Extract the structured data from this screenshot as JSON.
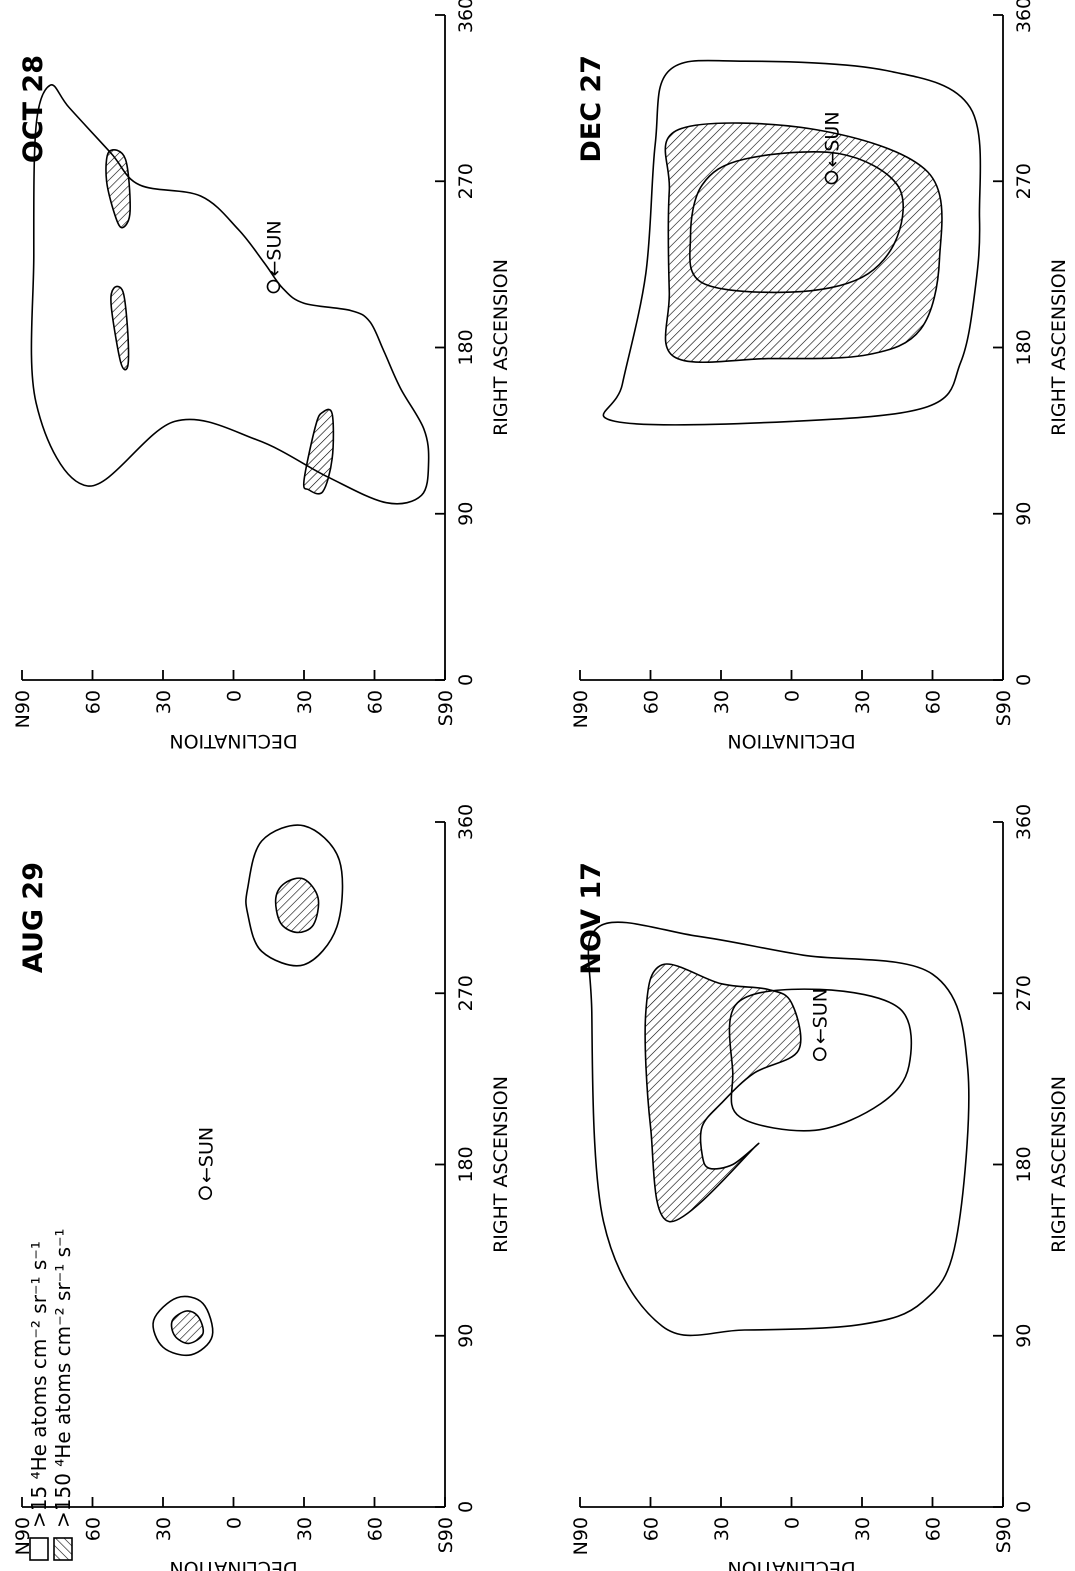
{
  "legend": {
    "low": {
      "symbol": "open box",
      "text": ">15 ⁴He atoms cm⁻² sr⁻¹ s⁻¹"
    },
    "high": {
      "symbol": "hatched box",
      "text": ">150 ⁴He atoms cm⁻² sr⁻¹ s⁻¹"
    }
  },
  "chart_data": [
    {
      "type": "contour",
      "title": "AUG 29",
      "xlabel": "RIGHT ASCENSION",
      "ylabel": "DECLINATION",
      "xticks": [
        "0",
        "90",
        "180",
        "270",
        "360"
      ],
      "yticks": [
        "N90",
        "60",
        "30",
        "0",
        "30",
        "60",
        "S90"
      ],
      "xlim": [
        0,
        360
      ],
      "ylim": [
        -90,
        90
      ],
      "sun": {
        "label": "SUN",
        "ra": 165,
        "dec": 12
      },
      "regions": [
        {
          "level": ">15",
          "contour": [
            [
              98,
              34
            ],
            [
              110,
              24
            ],
            [
              107,
              13
            ],
            [
              90,
              9
            ],
            [
              80,
              18
            ],
            [
              84,
              30
            ]
          ]
        },
        {
          "level": ">150",
          "contour": [
            [
              98,
              26
            ],
            [
              103,
              20
            ],
            [
              100,
              15
            ],
            [
              91,
              13
            ],
            [
              86,
              19
            ],
            [
              90,
              25
            ]
          ]
        },
        {
          "level": ">15",
          "contour": [
            [
              325,
              -6
            ],
            [
              350,
              -12
            ],
            [
              358,
              -30
            ],
            [
              340,
              -45
            ],
            [
              305,
              -44
            ],
            [
              285,
              -30
            ],
            [
              292,
              -12
            ],
            [
              312,
              -6
            ]
          ]
        },
        {
          "level": ">150",
          "contour": [
            [
              320,
              -18
            ],
            [
              328,
              -22
            ],
            [
              330,
              -30
            ],
            [
              320,
              -36
            ],
            [
              306,
              -34
            ],
            [
              302,
              -27
            ],
            [
              307,
              -20
            ]
          ]
        }
      ]
    },
    {
      "type": "contour",
      "title": "OCT 28",
      "xlabel": "RIGHT ASCENSION",
      "ylabel": "DECLINATION",
      "xticks": [
        "0",
        "90",
        "180",
        "270",
        "360"
      ],
      "yticks": [
        "N90",
        "60",
        "30",
        "0",
        "30",
        "60",
        "S90"
      ],
      "xlim": [
        0,
        360
      ],
      "ylim": [
        -90,
        90
      ],
      "sun": {
        "label": "SUN",
        "ra": 213,
        "dec": -17
      },
      "regions": [
        {
          "level": ">15",
          "contour": [
            [
              105,
              62
            ],
            [
              150,
              84
            ],
            [
              230,
              85
            ],
            [
              300,
              84
            ],
            [
              322,
              78
            ],
            [
              310,
              70
            ],
            [
              285,
              52
            ],
            [
              268,
              40
            ],
            [
              262,
              14
            ],
            [
              244,
              -2
            ],
            [
              226,
              -13
            ],
            [
              212,
              -21
            ],
            [
              204,
              -30
            ],
            [
              200,
              -50
            ],
            [
              194,
              -58
            ],
            [
              178,
              -64
            ],
            [
              158,
              -71
            ],
            [
              136,
              -81
            ],
            [
              118,
              -83
            ],
            [
              100,
              -80
            ],
            [
              96,
              -65
            ],
            [
              110,
              -40
            ],
            [
              130,
              -10
            ],
            [
              140,
              25
            ]
          ]
        },
        {
          "level": ">150",
          "contour": [
            [
              108,
              -30
            ],
            [
              138,
              -35
            ],
            [
              145,
              -38
            ],
            [
              144,
              -42
            ],
            [
              120,
              -42
            ],
            [
              102,
              -38
            ],
            [
              103,
              -32
            ]
          ]
        },
        {
          "level": ">150",
          "contour": [
            [
              172,
              48
            ],
            [
              202,
              52
            ],
            [
              212,
              51
            ],
            [
              210,
              47
            ],
            [
              188,
              45
            ],
            [
              170,
              45
            ]
          ]
        },
        {
          "level": ">150",
          "contour": [
            [
              250,
              50
            ],
            [
              270,
              54
            ],
            [
              286,
              53
            ],
            [
              282,
              46
            ],
            [
              254,
              44
            ],
            [
              245,
              47
            ]
          ]
        }
      ]
    },
    {
      "type": "contour",
      "title": "NOV 17",
      "xlabel": "RIGHT ASCENSION",
      "ylabel": "DECLINATION",
      "xticks": [
        "0",
        "90",
        "180",
        "270",
        "360"
      ],
      "yticks": [
        "N90",
        "60",
        "30",
        "0",
        "30",
        "60",
        "S90"
      ],
      "xlim": [
        0,
        360
      ],
      "ylim": [
        -90,
        90
      ],
      "sun": {
        "label": "SUN",
        "ra": 238,
        "dec": -12
      },
      "regions": [
        {
          "level": ">15",
          "contour": [
            [
              95,
              55
            ],
            [
              150,
              80
            ],
            [
              260,
              85
            ],
            [
              305,
              82
            ],
            [
              300,
              40
            ],
            [
              290,
              -5
            ],
            [
              280,
              -60
            ],
            [
              230,
              -75
            ],
            [
              140,
              -70
            ],
            [
              108,
              -56
            ],
            [
              96,
              -30
            ],
            [
              93,
              20
            ]
          ]
        },
        {
          "level": ">150",
          "contour": [
            [
              150,
              52
            ],
            [
              200,
              60
            ],
            [
              260,
              62
            ],
            [
              285,
              55
            ],
            [
              275,
              30
            ],
            [
              272,
              10
            ],
            [
              265,
              0
            ],
            [
              240,
              -3
            ],
            [
              228,
              16
            ],
            [
              212,
              30
            ],
            [
              200,
              38
            ],
            [
              185,
              38
            ],
            [
              178,
              35
            ],
            [
              180,
              25
            ],
            [
              190,
              15
            ]
          ]
        },
        {
          "level": ">15",
          "contour": [
            [
              205,
              22
            ],
            [
              228,
              25
            ],
            [
              265,
              23
            ],
            [
              272,
              -12
            ],
            [
              262,
              -46
            ],
            [
              232,
              -50
            ],
            [
              212,
              -38
            ],
            [
              198,
              -10
            ]
          ]
        }
      ]
    },
    {
      "type": "contour",
      "title": "DEC 27",
      "xlabel": "RIGHT ASCENSION",
      "ylabel": "DECLINATION",
      "xticks": [
        "0",
        "90",
        "180",
        "270",
        "360"
      ],
      "yticks": [
        "N90",
        "60",
        "30",
        "0",
        "30",
        "60",
        "S90"
      ],
      "xlim": [
        0,
        360
      ],
      "ylim": [
        -90,
        90
      ],
      "sun": {
        "label": "SUN",
        "ra": 272,
        "dec": -17
      },
      "regions": [
        {
          "level": ">15",
          "contour": [
            [
              140,
              75
            ],
            [
              160,
              72
            ],
            [
              220,
              62
            ],
            [
              290,
              58
            ],
            [
              330,
              52
            ],
            [
              335,
              20
            ],
            [
              330,
              -40
            ],
            [
              310,
              -76
            ],
            [
              250,
              -80
            ],
            [
              210,
              -78
            ],
            [
              172,
              -72
            ],
            [
              148,
              -58
            ],
            [
              140,
              0
            ]
          ]
        },
        {
          "level": ">150",
          "contour": [
            [
              175,
              50
            ],
            [
              210,
              52
            ],
            [
              265,
              52
            ],
            [
              298,
              48
            ],
            [
              298,
              -10
            ],
            [
              275,
              -58
            ],
            [
              228,
              -63
            ],
            [
              190,
              -55
            ],
            [
              176,
              -32
            ],
            [
              174,
              10
            ]
          ]
        },
        {
          "level": ">15",
          "contour": [
            [
              215,
              38
            ],
            [
              240,
              43
            ],
            [
              268,
              38
            ],
            [
              282,
              20
            ],
            [
              285,
              -20
            ],
            [
              268,
              -45
            ],
            [
              240,
              -45
            ],
            [
              218,
              -30
            ],
            [
              210,
              0
            ]
          ]
        }
      ]
    }
  ]
}
